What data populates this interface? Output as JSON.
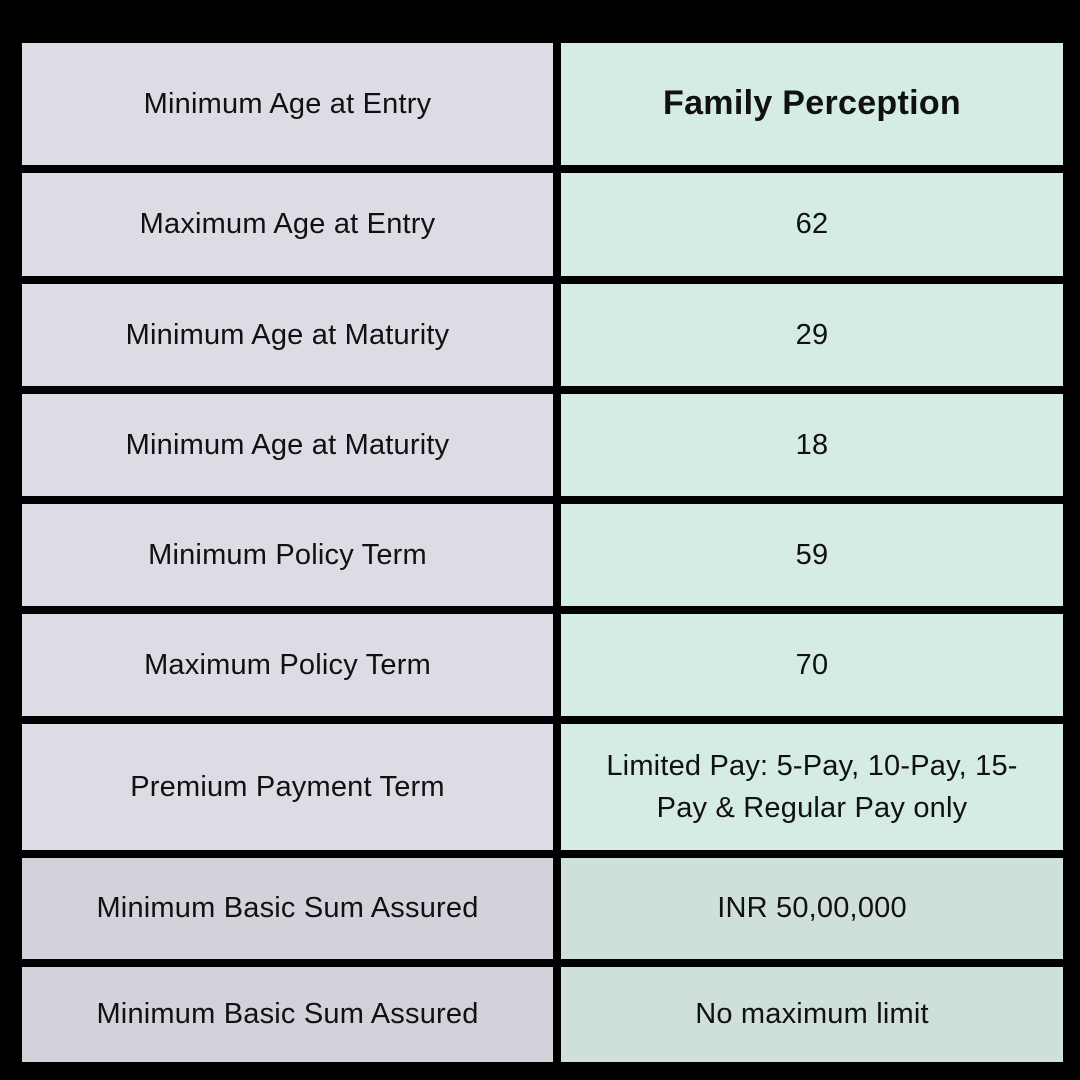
{
  "title": "Family Perception plan features table",
  "colors": {
    "page_background": "#000000",
    "label_cell": "#dedbe4",
    "value_cell": "#d5ece3",
    "label_cell_muted": "#d3d1d9",
    "value_cell_muted": "#cfe0d8",
    "text": "#111111"
  },
  "chart_data": {
    "type": "table",
    "columns": [
      "feature",
      "value"
    ],
    "header_value": "Family Perception",
    "rows": [
      {
        "feature": "Minimum Age at Entry",
        "value": "Family Perception",
        "value_bold": true
      },
      {
        "feature": "Maximum Age at Entry",
        "value": "62"
      },
      {
        "feature": "Minimum Age at Maturity",
        "value": "29"
      },
      {
        "feature": "Minimum Age at Maturity",
        "value": "18"
      },
      {
        "feature": "Minimum Policy Term",
        "value": "59"
      },
      {
        "feature": "Maximum Policy Term",
        "value": "70"
      },
      {
        "feature": "Premium Payment Term",
        "value": "Limited Pay: 5-Pay, 10-Pay, 15-Pay & Regular Pay only"
      },
      {
        "feature": "Minimum Basic Sum Assured",
        "value": "INR 50,00,000",
        "muted": true
      },
      {
        "feature": "Minimum Basic Sum Assured",
        "value": "No maximum limit",
        "muted": true
      }
    ]
  }
}
